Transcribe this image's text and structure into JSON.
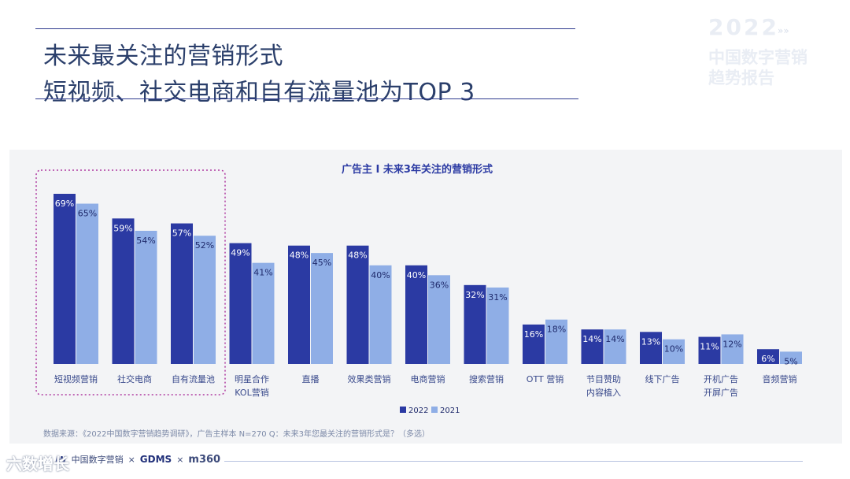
{
  "header": {
    "title_line1": "未来最关注的营销形式",
    "title_line2": "短视频、社交电商和自有流量池为TOP 3"
  },
  "brand": {
    "year": "2022",
    "arrows": "»»",
    "line1": "中国数字营销",
    "line2": "趋势报告"
  },
  "chart_data": {
    "type": "bar",
    "title": "广告主 I 未来3年关注的营销形式",
    "categories": [
      [
        "短视频营销"
      ],
      [
        "社交电商"
      ],
      [
        "自有流量池"
      ],
      [
        "明星合作",
        "KOL营销"
      ],
      [
        "直播"
      ],
      [
        "效果类营销"
      ],
      [
        "电商营销"
      ],
      [
        "搜索营销"
      ],
      [
        "OTT 营销"
      ],
      [
        "节目赞助",
        "内容植入"
      ],
      [
        "线下广告"
      ],
      [
        "开机广告",
        "开屏广告"
      ],
      [
        "音频营销"
      ]
    ],
    "series": [
      {
        "name": "2022",
        "color": "#2b3aa3",
        "values": [
          69,
          59,
          57,
          49,
          48,
          48,
          40,
          32,
          16,
          14,
          13,
          11,
          6
        ]
      },
      {
        "name": "2021",
        "color": "#8faee6",
        "values": [
          65,
          54,
          52,
          41,
          45,
          40,
          36,
          31,
          18,
          14,
          10,
          12,
          5
        ]
      }
    ],
    "value_suffix": "%",
    "highlighted_categories": [
      "短视频营销",
      "社交电商",
      "自有流量池"
    ],
    "legend_position": "bottom-center",
    "grid": false
  },
  "source_note": "数据来源：《2022中国数字营销趋势调研》，广告主样本 N=270    Q：未来3年您最关注的营销形式是？（多选）",
  "footer": {
    "logo1": "ꟿ",
    "logo1_text": "中国数字营销",
    "sep": "×",
    "gdms": "GDMS",
    "m360": "m360",
    "watermark": "六数增长"
  }
}
